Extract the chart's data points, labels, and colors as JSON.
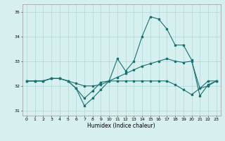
{
  "xlabel": "Humidex (Indice chaleur)",
  "background_color": "#d6f0f0",
  "grid_color": "#b0d8d8",
  "line_color": "#1a7070",
  "x": [
    0,
    1,
    2,
    3,
    4,
    5,
    6,
    7,
    8,
    9,
    10,
    11,
    12,
    13,
    14,
    15,
    16,
    17,
    18,
    19,
    20,
    21,
    22,
    23
  ],
  "line1": [
    32.2,
    32.2,
    32.2,
    32.3,
    32.3,
    32.2,
    31.9,
    31.2,
    31.5,
    31.85,
    32.2,
    33.1,
    32.6,
    33.0,
    34.0,
    34.8,
    34.7,
    34.3,
    33.65,
    33.65,
    33.05,
    31.6,
    32.05,
    32.2
  ],
  "line2": [
    32.2,
    32.2,
    32.2,
    32.3,
    32.3,
    32.2,
    32.1,
    32.0,
    32.0,
    32.05,
    32.2,
    32.35,
    32.5,
    32.65,
    32.8,
    32.9,
    33.0,
    33.1,
    33.0,
    32.95,
    33.0,
    31.9,
    32.0,
    32.2
  ],
  "line3": [
    32.2,
    32.2,
    32.2,
    32.3,
    32.3,
    32.2,
    31.9,
    31.5,
    31.8,
    32.15,
    32.2,
    32.2,
    32.2,
    32.2,
    32.2,
    32.2,
    32.2,
    32.2,
    32.05,
    31.85,
    31.65,
    31.9,
    32.2,
    32.2
  ],
  "ylim": [
    30.8,
    35.3
  ],
  "yticks": [
    31,
    32,
    33,
    34,
    35
  ],
  "xticks": [
    0,
    1,
    2,
    3,
    4,
    5,
    6,
    7,
    8,
    9,
    10,
    11,
    12,
    13,
    14,
    15,
    16,
    17,
    18,
    19,
    20,
    21,
    22,
    23
  ]
}
